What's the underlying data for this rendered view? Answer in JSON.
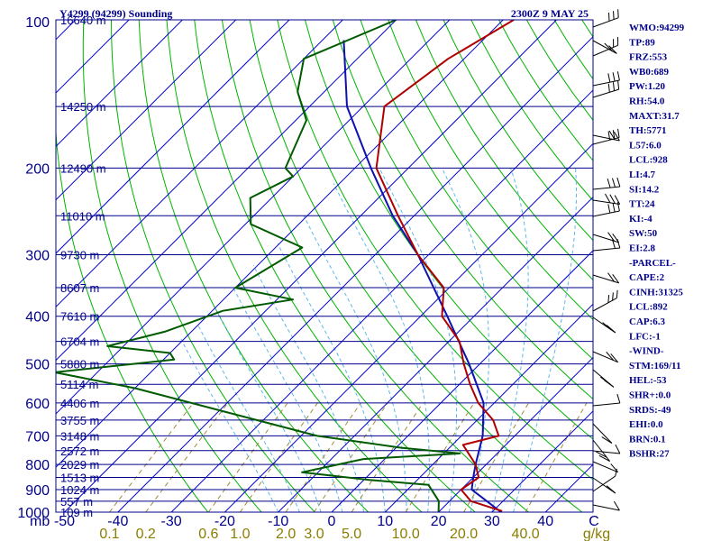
{
  "header": {
    "left_title": "Y4299 (94299) Sounding",
    "right_title": "2300Z  9 MAY 25"
  },
  "indices": [
    "WMO:94299",
    "TP:89",
    "FRZ:553",
    "WB0:689",
    "PW:1.20",
    "RH:54.0",
    "MAXT:31.7",
    "TH:5771",
    "L57:6.0",
    "LCL:928",
    "LI:4.7",
    "SI:14.2",
    "TT:24",
    "KI:-4",
    "SW:50",
    "EI:2.8",
    "-PARCEL-",
    "CAPE:2",
    "CINH:31325",
    "LCL:892",
    "CAP:6.3",
    "LFC:-1",
    "-WIND-",
    "STM:169/11",
    "HEL:-53",
    "SHR+:0.0",
    "SRDS:-49",
    "EHI:0.0",
    "BRN:0.1",
    "BSHR:27"
  ],
  "colors": {
    "axes": "#00008b",
    "isotherm": "#0000cd",
    "dry_adiabat": "#00b300",
    "moist_adiabat": "#5fb8e8",
    "mixing_ratio": "#a08c3c",
    "temperature": "#b00000",
    "dewpoint": "#005a00",
    "parcel": "#1010b0",
    "wind": "#000000"
  },
  "chart_data": {
    "type": "skew-t log-p sounding",
    "pressure_axis_label": "mb",
    "pressure_ticks": [
      100,
      200,
      300,
      400,
      500,
      600,
      700,
      800,
      900,
      1000
    ],
    "temperature_ticks": [
      "-50",
      "-40",
      "-30",
      "-20",
      "-10",
      "0",
      "10",
      "20",
      "30",
      "40",
      "C"
    ],
    "temperature_tick_values": [
      -50,
      -40,
      -30,
      -20,
      -10,
      0,
      10,
      20,
      30,
      40
    ],
    "mixing_ratio_ticks": [
      "0.1",
      "0.2",
      "0.6",
      "1.0",
      "2.0",
      "3.0",
      "5.0",
      "10.0",
      "20.0",
      "40.0",
      "g/kg"
    ],
    "mixing_ratio_values": [
      0.1,
      0.2,
      0.6,
      1.0,
      2.0,
      3.0,
      5.0,
      10.0,
      20.0,
      40.0
    ],
    "height_levels": [
      {
        "p": 100,
        "label": "16640 m"
      },
      {
        "p": 150,
        "label": "14250 m"
      },
      {
        "p": 200,
        "label": "12490 m"
      },
      {
        "p": 250,
        "label": "11010 m"
      },
      {
        "p": 300,
        "label": "9730 m"
      },
      {
        "p": 350,
        "label": "8607 m"
      },
      {
        "p": 400,
        "label": "7610 m"
      },
      {
        "p": 450,
        "label": "6704 m"
      },
      {
        "p": 500,
        "label": "5880 m"
      },
      {
        "p": 550,
        "label": "5114 m"
      },
      {
        "p": 600,
        "label": "4406 m"
      },
      {
        "p": 650,
        "label": "3755 m"
      },
      {
        "p": 700,
        "label": "3148 m"
      },
      {
        "p": 750,
        "label": "2572 m"
      },
      {
        "p": 800,
        "label": "2029 m"
      },
      {
        "p": 850,
        "label": "1513 m"
      },
      {
        "p": 900,
        "label": "1024 m"
      },
      {
        "p": 950,
        "label": "557 m"
      },
      {
        "p": 1000,
        "label": "109 m"
      }
    ],
    "temperature_profile": [
      {
        "p": 100,
        "t": -58
      },
      {
        "p": 120,
        "t": -63
      },
      {
        "p": 150,
        "t": -66
      },
      {
        "p": 200,
        "t": -56
      },
      {
        "p": 250,
        "t": -43
      },
      {
        "p": 300,
        "t": -32
      },
      {
        "p": 350,
        "t": -21
      },
      {
        "p": 400,
        "t": -16
      },
      {
        "p": 450,
        "t": -8
      },
      {
        "p": 500,
        "t": -3
      },
      {
        "p": 550,
        "t": 2
      },
      {
        "p": 600,
        "t": 7
      },
      {
        "p": 650,
        "t": 13
      },
      {
        "p": 700,
        "t": 17
      },
      {
        "p": 730,
        "t": 12
      },
      {
        "p": 800,
        "t": 18
      },
      {
        "p": 850,
        "t": 21
      },
      {
        "p": 900,
        "t": 20
      },
      {
        "p": 950,
        "t": 24
      },
      {
        "p": 995,
        "t": 31.7
      }
    ],
    "dewpoint_profile": [
      {
        "p": 100,
        "t": -80
      },
      {
        "p": 120,
        "t": -90
      },
      {
        "p": 140,
        "t": -85
      },
      {
        "p": 160,
        "t": -78
      },
      {
        "p": 200,
        "t": -73
      },
      {
        "p": 208,
        "t": -70
      },
      {
        "p": 230,
        "t": -74
      },
      {
        "p": 260,
        "t": -69
      },
      {
        "p": 290,
        "t": -55
      },
      {
        "p": 350,
        "t": -60
      },
      {
        "p": 370,
        "t": -47
      },
      {
        "p": 390,
        "t": -58
      },
      {
        "p": 430,
        "t": -65
      },
      {
        "p": 460,
        "t": -73
      },
      {
        "p": 475,
        "t": -60
      },
      {
        "p": 490,
        "t": -58
      },
      {
        "p": 520,
        "t": -78
      },
      {
        "p": 560,
        "t": -60
      },
      {
        "p": 700,
        "t": -17
      },
      {
        "p": 740,
        "t": 1
      },
      {
        "p": 760,
        "t": 13
      },
      {
        "p": 780,
        "t": -4
      },
      {
        "p": 830,
        "t": -13
      },
      {
        "p": 860,
        "t": 1
      },
      {
        "p": 880,
        "t": 13
      },
      {
        "p": 950,
        "t": 18
      },
      {
        "p": 1000,
        "t": 20
      }
    ],
    "parcel_profile": [
      {
        "p": 1000,
        "t": 31.7
      },
      {
        "p": 940,
        "t": 26
      },
      {
        "p": 900,
        "t": 22
      },
      {
        "p": 850,
        "t": 20
      },
      {
        "p": 800,
        "t": 18
      },
      {
        "p": 700,
        "t": 14
      },
      {
        "p": 600,
        "t": 8
      },
      {
        "p": 500,
        "t": -2
      },
      {
        "p": 400,
        "t": -15
      },
      {
        "p": 300,
        "t": -32
      },
      {
        "p": 250,
        "t": -44
      },
      {
        "p": 200,
        "t": -57
      },
      {
        "p": 150,
        "t": -73
      },
      {
        "p": 110,
        "t": -86
      }
    ]
  }
}
